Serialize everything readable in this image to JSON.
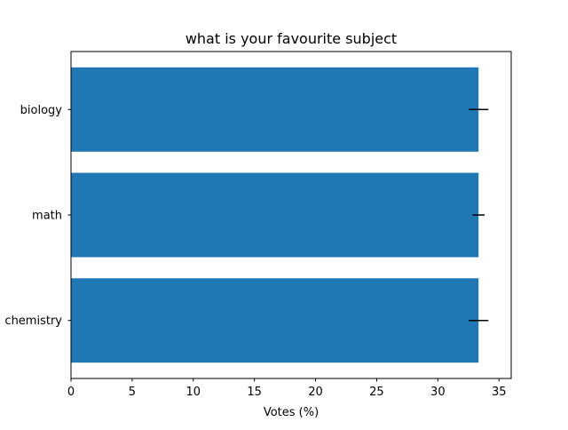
{
  "chart_data": {
    "type": "bar",
    "orientation": "horizontal",
    "title": "what is your favourite subject",
    "xlabel": "Votes (%)",
    "ylabel": "",
    "categories": [
      "chemistry",
      "math",
      "biology"
    ],
    "values": [
      33.33,
      33.33,
      33.33
    ],
    "errors": [
      0.8,
      0.5,
      0.8
    ],
    "xlim": [
      0,
      36
    ],
    "xticks": [
      0,
      5,
      10,
      15,
      20,
      25,
      30,
      35
    ],
    "grid": false,
    "colors": {
      "bar": "#1f77b4",
      "error": "#000000",
      "axis": "#000000"
    }
  }
}
